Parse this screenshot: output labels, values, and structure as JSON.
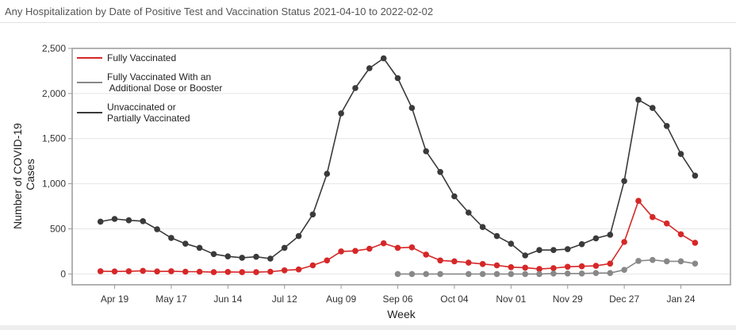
{
  "header": {
    "title": "Any Hospitalization by Date of Positive Test and Vaccination Status 2021-04-10 to 2022-02-02"
  },
  "chart_data": {
    "type": "line",
    "xlabel": "Week",
    "ylabel_lines": [
      "Number of COVID-19",
      "Cases"
    ],
    "ylim": [
      -120,
      2500
    ],
    "yticks": [
      0,
      500,
      1000,
      1500,
      2000,
      2500
    ],
    "ytick_labels": [
      "0",
      "500",
      "1,000",
      "1,500",
      "2,000",
      "2,500"
    ],
    "xlim": [
      -2.0,
      44.5
    ],
    "xticks": [
      1,
      5,
      9,
      13,
      17,
      21,
      25,
      29,
      33,
      37,
      41
    ],
    "xtick_labels": [
      "Apr 19",
      "May 17",
      "Jun 14",
      "Jul 12",
      "Aug 09",
      "Sep 06",
      "Oct 04",
      "Nov 01",
      "Nov 29",
      "Dec 27",
      "Jan 24"
    ],
    "legend": "top-left",
    "series": [
      {
        "name_lines": [
          "Fully Vaccinated"
        ],
        "color": "#d62728",
        "x": [
          0,
          1,
          2,
          3,
          4,
          5,
          6,
          7,
          8,
          9,
          10,
          11,
          12,
          13,
          14,
          15,
          16,
          17,
          18,
          19,
          20,
          21,
          22,
          23,
          24,
          25,
          26,
          27,
          28,
          29,
          30,
          31,
          32,
          33,
          34,
          35,
          36,
          37,
          38,
          39,
          40,
          41,
          42
        ],
        "y": [
          30,
          28,
          30,
          35,
          28,
          30,
          25,
          25,
          20,
          22,
          20,
          20,
          25,
          40,
          50,
          95,
          150,
          250,
          255,
          280,
          340,
          290,
          295,
          215,
          150,
          140,
          125,
          110,
          95,
          75,
          70,
          55,
          65,
          80,
          85,
          90,
          115,
          355,
          810,
          630,
          560,
          440,
          345
        ]
      },
      {
        "name_lines": [
          "Fully Vaccinated With an",
          " Additional Dose or Booster"
        ],
        "color": "#888888",
        "x": [
          21,
          22,
          23,
          24,
          26,
          27,
          28,
          29,
          30,
          31,
          32,
          33,
          34,
          35,
          36,
          37,
          38,
          39,
          40,
          41,
          42
        ],
        "y": [
          0,
          0,
          0,
          0,
          0,
          0,
          0,
          0,
          0,
          0,
          5,
          5,
          5,
          10,
          10,
          45,
          145,
          155,
          140,
          140,
          115
        ]
      },
      {
        "name_lines": [
          "Unvaccinated or",
          "Partially Vaccinated"
        ],
        "color": "#3a3a3a",
        "x": [
          0,
          1,
          2,
          3,
          4,
          5,
          6,
          7,
          8,
          9,
          10,
          11,
          12,
          13,
          14,
          15,
          16,
          17,
          18,
          19,
          20,
          21,
          22,
          23,
          24,
          25,
          26,
          27,
          28,
          29,
          30,
          31,
          32,
          33,
          34,
          35,
          36,
          37,
          38,
          39,
          40,
          41,
          42
        ],
        "y": [
          580,
          610,
          595,
          585,
          495,
          400,
          335,
          290,
          220,
          195,
          180,
          190,
          170,
          290,
          420,
          660,
          1110,
          1780,
          2060,
          2280,
          2390,
          2170,
          1840,
          1360,
          1130,
          860,
          680,
          520,
          420,
          335,
          205,
          265,
          265,
          275,
          330,
          395,
          435,
          1030,
          1930,
          1840,
          1640,
          1330,
          1090
        ]
      }
    ]
  }
}
